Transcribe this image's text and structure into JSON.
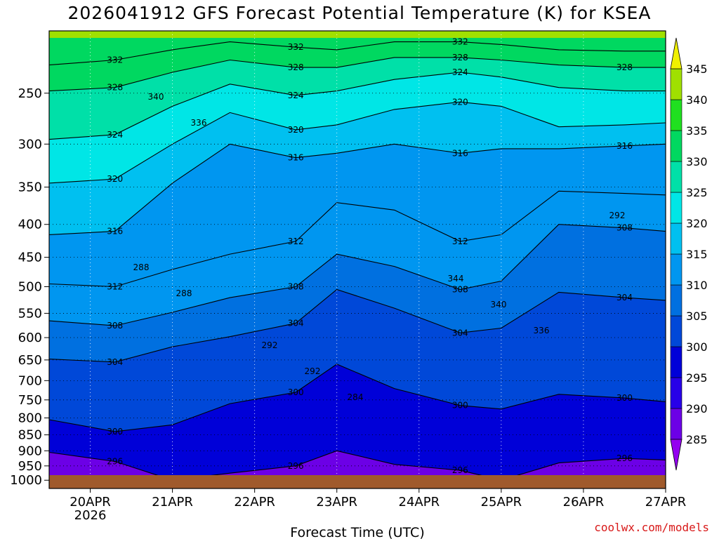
{
  "title": "2026041912 GFS Forecast Potential Temperature (K) for KSEA",
  "credit": "coolwx.com/models",
  "chart_data": {
    "type": "heatmap",
    "title": "2026041912 GFS Forecast Potential Temperature (K) for KSEA",
    "xlabel": "Forecast Time (UTC)",
    "ylabel": "",
    "x_ticks": [
      {
        "label": "20APR",
        "sublabel": "2026",
        "day": 0.5
      },
      {
        "label": "21APR",
        "sublabel": "",
        "day": 1.5
      },
      {
        "label": "22APR",
        "sublabel": "",
        "day": 2.5
      },
      {
        "label": "23APR",
        "sublabel": "",
        "day": 3.5
      },
      {
        "label": "24APR",
        "sublabel": "",
        "day": 4.5
      },
      {
        "label": "25APR",
        "sublabel": "",
        "day": 5.5
      },
      {
        "label": "26APR",
        "sublabel": "",
        "day": 6.5
      },
      {
        "label": "27APR",
        "sublabel": "",
        "day": 7.5
      }
    ],
    "xlim": [
      0,
      7.5
    ],
    "y_ticks": [
      "250",
      "300",
      "350",
      "400",
      "450",
      "500",
      "550",
      "600",
      "650",
      "700",
      "750",
      "800",
      "850",
      "900",
      "950",
      "1000"
    ],
    "ylim": [
      1030,
      200
    ],
    "y_scale": "log",
    "y_reversed": true,
    "colorbar": {
      "levels": [
        "285",
        "290",
        "295",
        "300",
        "305",
        "310",
        "315",
        "320",
        "325",
        "330",
        "335",
        "340",
        "345"
      ],
      "colors": [
        "#9400f0",
        "#6c00e6",
        "#2800e8",
        "#0000d8",
        "#0048d8",
        "#0070e0",
        "#0096f0",
        "#00c0f0",
        "#00e6e6",
        "#00e0a8",
        "#00d860",
        "#20e020",
        "#a0e000",
        "#f0f000"
      ],
      "extend": "both"
    },
    "contour_interval": 4,
    "ground_color": "#a05a2c",
    "contour_labels": [
      "328",
      "332",
      "340",
      "336",
      "328",
      "324",
      "332",
      "328",
      "324",
      "344",
      "340",
      "336",
      "332",
      "328",
      "324",
      "320",
      "316",
      "320",
      "316",
      "320",
      "316",
      "312",
      "316",
      "312",
      "312",
      "308",
      "304",
      "308",
      "300",
      "308",
      "304",
      "304",
      "308",
      "304",
      "300",
      "296",
      "300",
      "300",
      "296",
      "292",
      "296",
      "288",
      "288",
      "296",
      "292",
      "292",
      "284"
    ],
    "series": [
      {
        "name": "",
        "theta": 296,
        "points": [
          [
            0,
            905
          ],
          [
            0.8,
            935
          ],
          [
            1.5,
            1000
          ],
          [
            2.2,
            975
          ],
          [
            3.0,
            950
          ],
          [
            3.5,
            900
          ],
          [
            4.2,
            945
          ],
          [
            5.0,
            965
          ],
          [
            5.5,
            1000
          ],
          [
            6.2,
            940
          ],
          [
            7.0,
            925
          ],
          [
            7.5,
            930
          ]
        ]
      },
      {
        "name": "",
        "theta": 300,
        "points": [
          [
            0,
            805
          ],
          [
            0.8,
            840
          ],
          [
            1.5,
            820
          ],
          [
            2.2,
            760
          ],
          [
            3.0,
            730
          ],
          [
            3.5,
            660
          ],
          [
            4.2,
            720
          ],
          [
            5.0,
            765
          ],
          [
            5.5,
            775
          ],
          [
            6.2,
            735
          ],
          [
            7.0,
            745
          ],
          [
            7.5,
            755
          ]
        ]
      },
      {
        "name": "",
        "theta": 304,
        "points": [
          [
            0,
            648
          ],
          [
            0.8,
            655
          ],
          [
            1.5,
            620
          ],
          [
            2.2,
            598
          ],
          [
            3.0,
            570
          ],
          [
            3.5,
            505
          ],
          [
            4.2,
            540
          ],
          [
            5.0,
            590
          ],
          [
            5.5,
            580
          ],
          [
            6.2,
            510
          ],
          [
            7.0,
            520
          ],
          [
            7.5,
            525
          ]
        ]
      },
      {
        "name": "",
        "theta": 308,
        "points": [
          [
            0,
            565
          ],
          [
            0.8,
            575
          ],
          [
            1.5,
            548
          ],
          [
            2.2,
            520
          ],
          [
            3.0,
            500
          ],
          [
            3.5,
            445
          ],
          [
            4.2,
            465
          ],
          [
            5.0,
            505
          ],
          [
            5.5,
            490
          ],
          [
            6.2,
            400
          ],
          [
            7.0,
            405
          ],
          [
            7.5,
            410
          ]
        ]
      },
      {
        "name": "",
        "theta": 312,
        "points": [
          [
            0,
            495
          ],
          [
            0.8,
            500
          ],
          [
            1.5,
            470
          ],
          [
            2.2,
            445
          ],
          [
            3.0,
            425
          ],
          [
            3.5,
            370
          ],
          [
            4.2,
            380
          ],
          [
            5.0,
            425
          ],
          [
            5.5,
            415
          ],
          [
            6.2,
            355
          ],
          [
            7.0,
            358
          ],
          [
            7.5,
            360
          ]
        ]
      },
      {
        "name": "",
        "theta": 316,
        "points": [
          [
            0,
            415
          ],
          [
            0.8,
            410
          ],
          [
            1.5,
            345
          ],
          [
            2.2,
            300
          ],
          [
            3.0,
            315
          ],
          [
            3.5,
            310
          ],
          [
            4.2,
            300
          ],
          [
            5.0,
            310
          ],
          [
            5.5,
            305
          ],
          [
            6.2,
            305
          ],
          [
            7.0,
            302
          ],
          [
            7.5,
            300
          ]
        ]
      },
      {
        "name": "",
        "theta": 320,
        "points": [
          [
            0,
            345
          ],
          [
            0.8,
            340
          ],
          [
            1.5,
            300
          ],
          [
            2.2,
            268
          ],
          [
            3.0,
            285
          ],
          [
            3.5,
            280
          ],
          [
            4.2,
            265
          ],
          [
            5.0,
            258
          ],
          [
            5.5,
            262
          ],
          [
            6.2,
            282
          ],
          [
            7.0,
            280
          ],
          [
            7.5,
            278
          ]
        ]
      },
      {
        "name": "",
        "theta": 324,
        "points": [
          [
            0,
            295
          ],
          [
            0.8,
            290
          ],
          [
            1.5,
            262
          ],
          [
            2.2,
            242
          ],
          [
            3.0,
            252
          ],
          [
            3.5,
            248
          ],
          [
            4.2,
            238
          ],
          [
            5.0,
            232
          ],
          [
            5.5,
            236
          ],
          [
            6.2,
            245
          ],
          [
            7.0,
            248
          ],
          [
            7.5,
            248
          ]
        ]
      },
      {
        "name": "",
        "theta": 328,
        "points": [
          [
            0,
            248
          ],
          [
            0.8,
            245
          ],
          [
            1.5,
            232
          ],
          [
            2.2,
            222
          ],
          [
            3.0,
            228
          ],
          [
            3.5,
            228
          ],
          [
            4.2,
            220
          ],
          [
            5.0,
            220
          ],
          [
            5.5,
            222
          ],
          [
            6.2,
            226
          ],
          [
            7.0,
            228
          ],
          [
            7.5,
            228
          ]
        ]
      },
      {
        "name": "",
        "theta": 332,
        "points": [
          [
            0,
            226
          ],
          [
            0.8,
            222
          ],
          [
            1.5,
            214
          ],
          [
            2.2,
            208
          ],
          [
            3.0,
            212
          ],
          [
            3.5,
            214
          ],
          [
            4.2,
            208
          ],
          [
            5.0,
            208
          ],
          [
            5.5,
            210
          ],
          [
            6.2,
            214
          ],
          [
            7.0,
            215
          ],
          [
            7.5,
            215
          ]
        ]
      }
    ]
  }
}
